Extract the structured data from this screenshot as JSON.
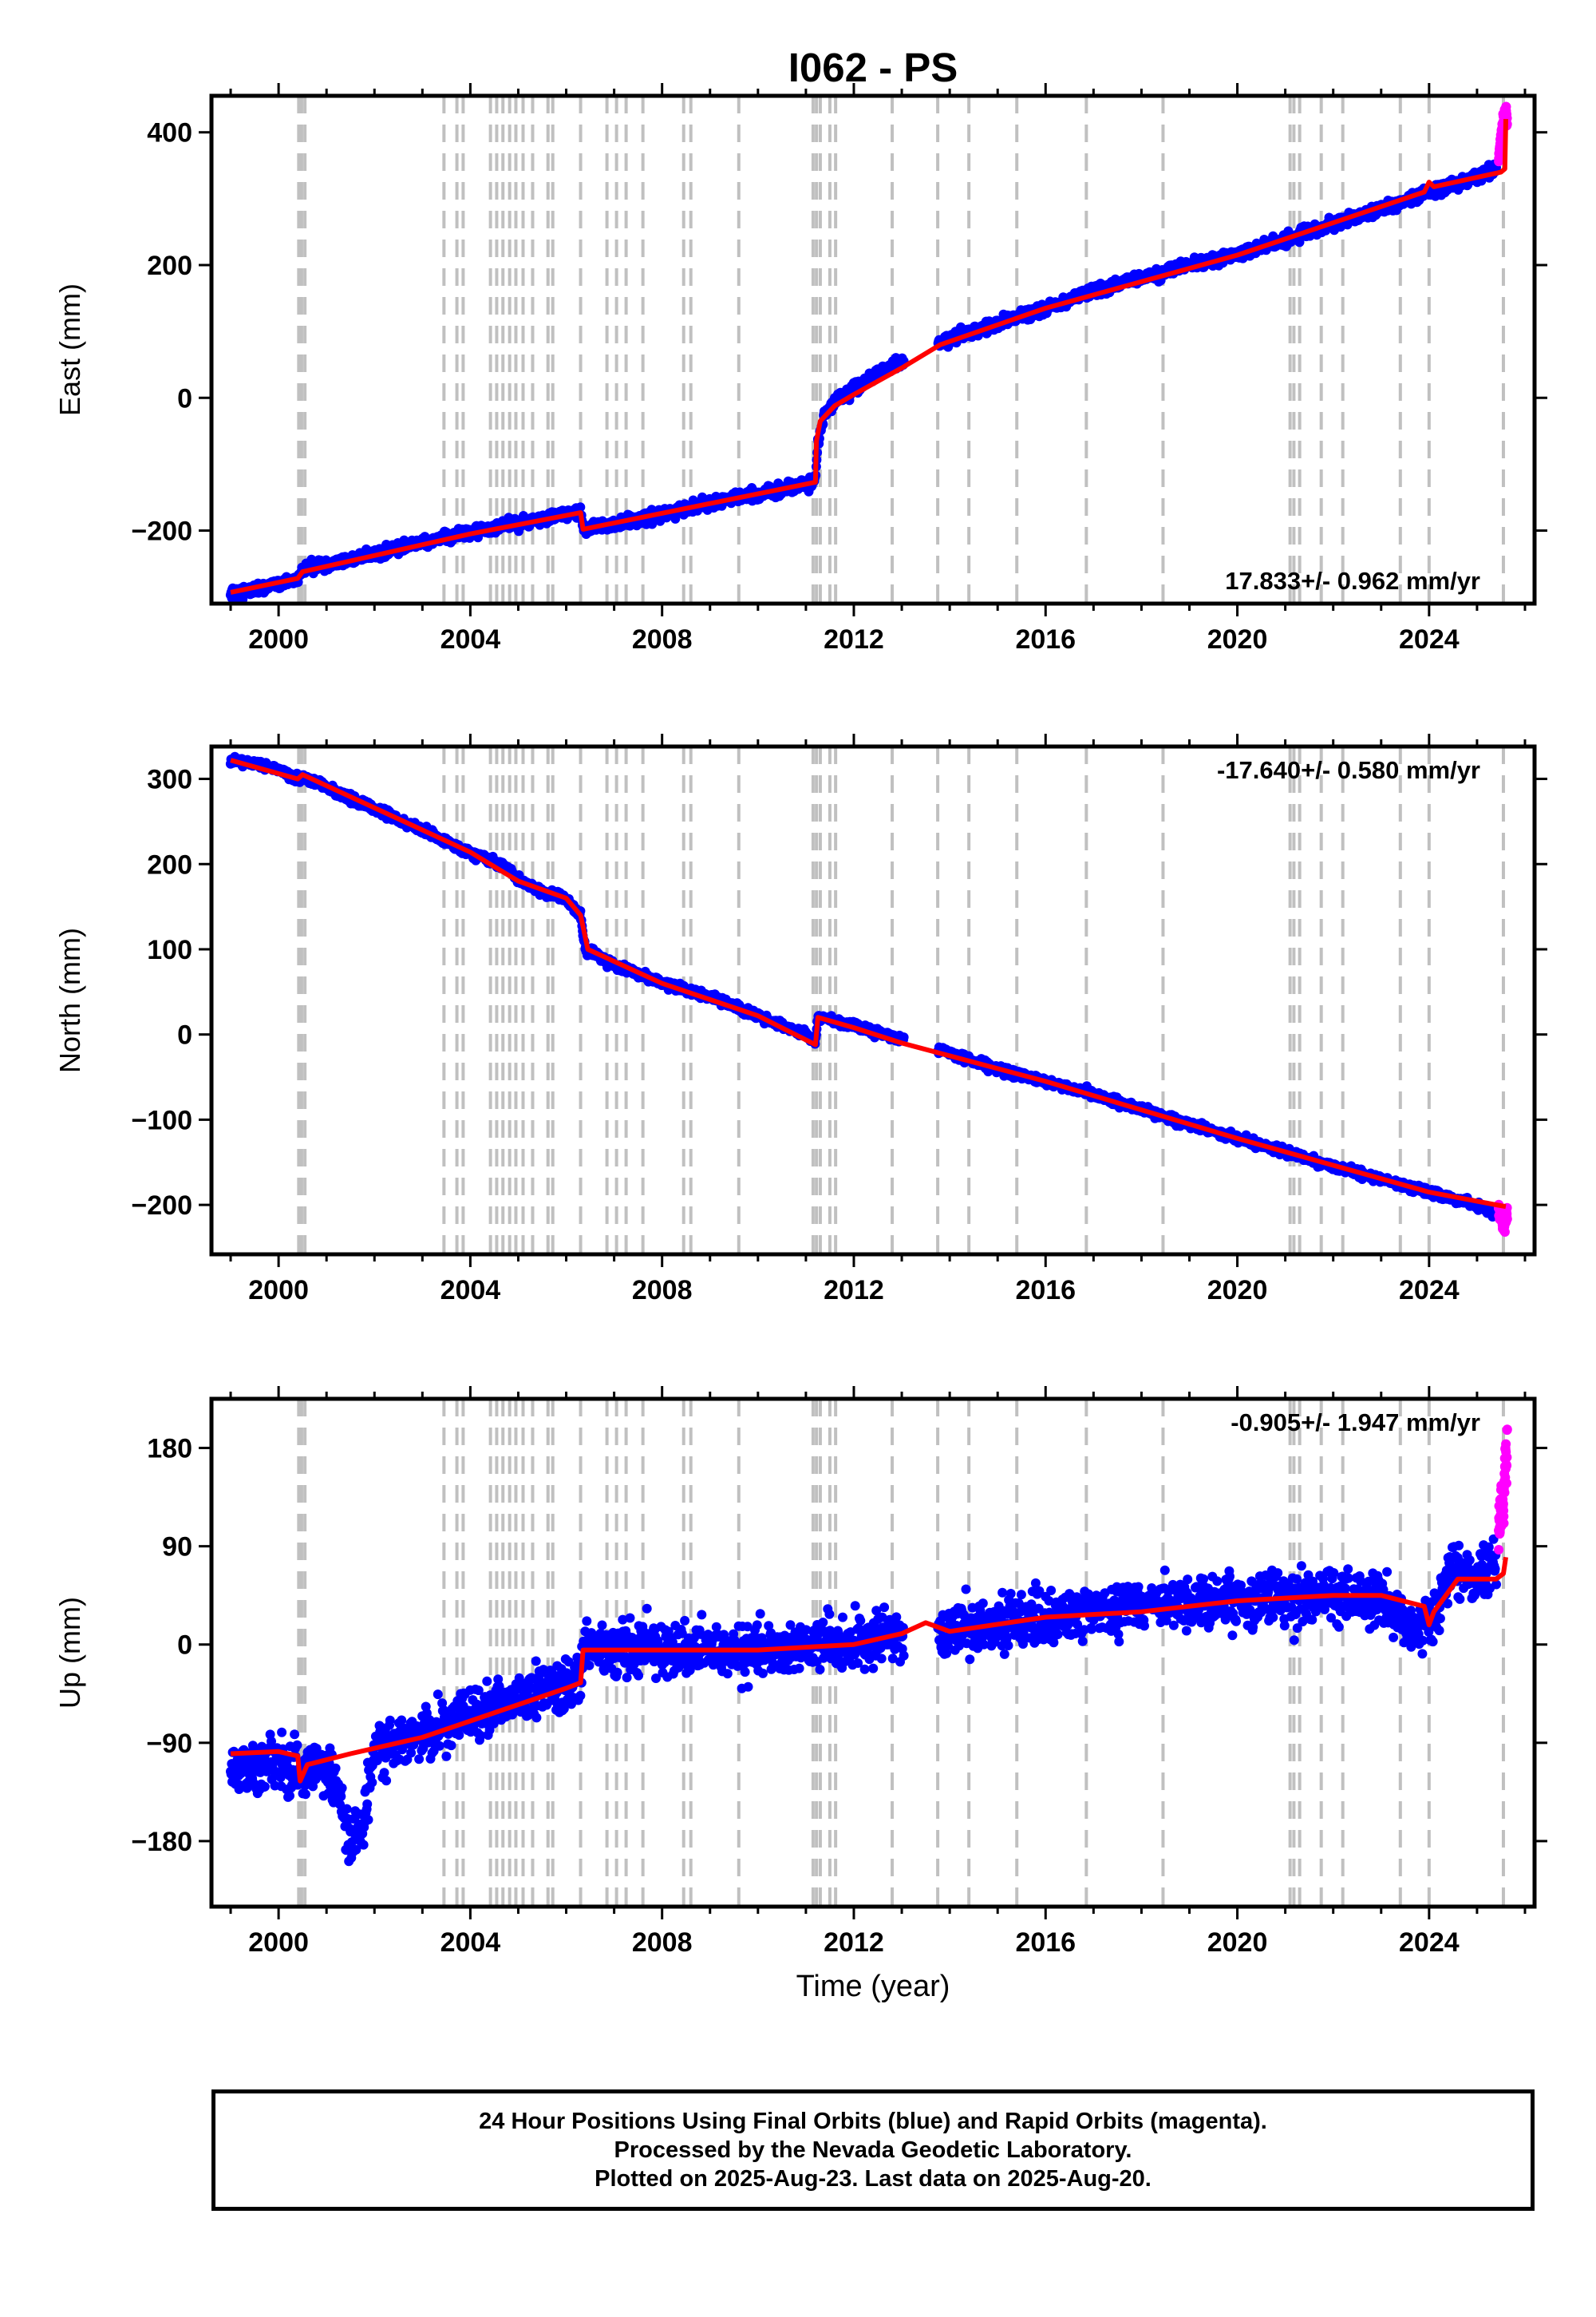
{
  "page_title": "I062 - PS",
  "colors": {
    "final_points": "#0000ff",
    "rapid_points": "#ff00ff",
    "model_line": "#ff0000",
    "event_lines": "#c0c0c0",
    "frame": "#000000"
  },
  "footer": {
    "line1": "24 Hour Positions Using Final Orbits (blue) and Rapid Orbits (magenta).",
    "line2": "Processed by the Nevada Geodetic Laboratory.",
    "line3": "Plotted on 2025-Aug-23. Last data on 2025-Aug-20."
  },
  "chart_data": [
    {
      "type": "scatter",
      "title": "I062 - PS",
      "xlabel": "",
      "ylabel": "East (mm)",
      "xlim": [
        1998.6,
        2026.2
      ],
      "ylim": [
        -310,
        455
      ],
      "xticks": [
        2000,
        2004,
        2008,
        2012,
        2016,
        2020,
        2024
      ],
      "xtick_labels": [
        "2000",
        "2004",
        "2008",
        "2012",
        "2016",
        "2020",
        "2024"
      ],
      "yticks": [
        -200,
        0,
        200,
        400
      ],
      "ytick_labels": [
        "−200",
        "0",
        "200",
        "400"
      ],
      "rate_annotation": "17.833+/- 0.962 mm/yr",
      "annotation_position": "bottom-right",
      "grid": false,
      "event_lines_x": [
        2000.42,
        2000.48,
        2000.55,
        2003.45,
        2003.72,
        2003.85,
        2004.42,
        2004.55,
        2004.68,
        2004.82,
        2004.95,
        2005.1,
        2005.3,
        2005.62,
        2005.72,
        2006.3,
        2006.85,
        2007.05,
        2007.25,
        2007.6,
        2008.45,
        2008.6,
        2009.6,
        2011.15,
        2011.22,
        2011.3,
        2011.5,
        2011.62,
        2012.8,
        2013.75,
        2014.4,
        2015.4,
        2016.85,
        2018.45,
        2021.1,
        2021.18,
        2021.3,
        2021.75,
        2022.2,
        2023.4,
        2024.0,
        2025.55
      ],
      "series": [
        {
          "name": "Final Orbits",
          "style": "points",
          "color": "#0000ff",
          "noise": 7,
          "x": [
            1999.0,
            1999.5,
            2000.0,
            2000.4,
            2000.5,
            2001.0,
            2002.0,
            2003.0,
            2004.0,
            2005.0,
            2006.0,
            2006.3,
            2006.35,
            2007.0,
            2008.0,
            2009.0,
            2010.0,
            2011.0,
            2011.2,
            2011.25,
            2011.4,
            2011.6,
            2012.0,
            2012.5,
            2013.0,
            2013.2,
            2013.8,
            2014.0,
            2015.0,
            2016.0,
            2017.0,
            2018.0,
            2019.0,
            2020.0,
            2021.0,
            2022.0,
            2023.0,
            2024.0,
            2024.5,
            2025.0,
            2025.4
          ],
          "y": [
            -295,
            -289,
            -280,
            -272,
            -258,
            -252,
            -235,
            -218,
            -203,
            -189,
            -175,
            -172,
            -198,
            -190,
            -175,
            -158,
            -145,
            -130,
            -125,
            -65,
            -25,
            -5,
            15,
            38,
            55,
            62,
            82,
            88,
            112,
            135,
            162,
            180,
            200,
            217,
            237,
            262,
            285,
            310,
            322,
            335,
            345
          ]
        },
        {
          "name": "Rapid Orbits",
          "style": "points",
          "color": "#ff00ff",
          "noise": 10,
          "x": [
            2025.45,
            2025.5,
            2025.55,
            2025.6,
            2025.63
          ],
          "y": [
            360,
            390,
            420,
            435,
            410
          ]
        },
        {
          "name": "Model",
          "style": "line",
          "color": "#ff0000",
          "x": [
            1999.0,
            2000.4,
            2000.5,
            2004.0,
            2006.3,
            2006.35,
            2011.2,
            2011.22,
            2011.3,
            2011.6,
            2012.0,
            2013.0,
            2013.8,
            2016.0,
            2020.0,
            2023.9,
            2024.0,
            2024.1,
            2025.5,
            2025.58,
            2025.6
          ],
          "y": [
            -293,
            -272,
            -262,
            -205,
            -173,
            -198,
            -127,
            -65,
            -35,
            -12,
            5,
            45,
            80,
            135,
            215,
            310,
            325,
            318,
            340,
            345,
            420
          ]
        }
      ]
    },
    {
      "type": "scatter",
      "title": "",
      "xlabel": "",
      "ylabel": "North (mm)",
      "xlim": [
        1998.6,
        2026.2
      ],
      "ylim": [
        -258,
        338
      ],
      "xticks": [
        2000,
        2004,
        2008,
        2012,
        2016,
        2020,
        2024
      ],
      "xtick_labels": [
        "2000",
        "2004",
        "2008",
        "2012",
        "2016",
        "2020",
        "2024"
      ],
      "yticks": [
        -200,
        -100,
        0,
        100,
        200,
        300
      ],
      "ytick_labels": [
        "−200",
        "−100",
        "0",
        "100",
        "200",
        "300"
      ],
      "rate_annotation": "-17.640+/- 0.580 mm/yr",
      "annotation_position": "top-right",
      "grid": false,
      "event_lines_x": [
        2000.42,
        2000.48,
        2000.55,
        2003.45,
        2003.72,
        2003.85,
        2004.42,
        2004.55,
        2004.68,
        2004.82,
        2004.95,
        2005.1,
        2005.3,
        2005.62,
        2005.72,
        2006.3,
        2006.85,
        2007.05,
        2007.25,
        2007.6,
        2008.45,
        2008.6,
        2009.6,
        2011.15,
        2011.22,
        2011.3,
        2011.5,
        2011.62,
        2012.8,
        2013.75,
        2014.4,
        2015.4,
        2016.85,
        2018.45,
        2021.1,
        2021.18,
        2021.3,
        2021.75,
        2022.2,
        2023.4,
        2024.0,
        2025.55
      ],
      "series": [
        {
          "name": "Final Orbits",
          "style": "points",
          "color": "#0000ff",
          "noise": 4,
          "x": [
            1999.0,
            1999.5,
            2000.0,
            2000.4,
            2000.5,
            2001.0,
            2002.0,
            2003.0,
            2004.0,
            2004.8,
            2005.0,
            2005.5,
            2006.0,
            2006.3,
            2006.4,
            2007.0,
            2008.0,
            2009.0,
            2010.0,
            2011.0,
            2011.2,
            2011.25,
            2012.0,
            2013.0,
            2014.0,
            2015.0,
            2016.0,
            2017.0,
            2018.0,
            2019.0,
            2020.0,
            2021.0,
            2022.0,
            2023.0,
            2024.0,
            2025.0,
            2025.4
          ],
          "y": [
            322,
            318,
            310,
            300,
            303,
            290,
            265,
            240,
            213,
            195,
            182,
            168,
            160,
            140,
            100,
            82,
            60,
            45,
            22,
            0,
            -10,
            20,
            10,
            -5,
            -22,
            -40,
            -55,
            -70,
            -88,
            -105,
            -122,
            -138,
            -155,
            -170,
            -185,
            -200,
            -212
          ]
        },
        {
          "name": "Rapid Orbits",
          "style": "points",
          "color": "#ff00ff",
          "noise": 8,
          "x": [
            2025.45,
            2025.5,
            2025.55,
            2025.6,
            2025.63
          ],
          "y": [
            -205,
            -215,
            -225,
            -220,
            -210
          ]
        },
        {
          "name": "Model",
          "style": "line",
          "color": "#ff0000",
          "x": [
            1999.0,
            2000.4,
            2000.5,
            2004.0,
            2005.0,
            2006.0,
            2006.3,
            2006.45,
            2008.0,
            2010.0,
            2011.2,
            2011.25,
            2012.0,
            2013.0,
            2016.0,
            2020.0,
            2024.0,
            2025.4,
            2025.6
          ],
          "y": [
            322,
            300,
            305,
            214,
            180,
            160,
            140,
            100,
            60,
            22,
            -12,
            20,
            8,
            -10,
            -55,
            -122,
            -185,
            -200,
            -202
          ]
        }
      ]
    },
    {
      "type": "scatter",
      "title": "",
      "xlabel": "Time (year)",
      "ylabel": "Up (mm)",
      "xlim": [
        1998.6,
        2026.2
      ],
      "ylim": [
        -240,
        225
      ],
      "xticks": [
        2000,
        2004,
        2008,
        2012,
        2016,
        2020,
        2024
      ],
      "xtick_labels": [
        "2000",
        "2004",
        "2008",
        "2012",
        "2016",
        "2020",
        "2024"
      ],
      "yticks": [
        -180,
        -90,
        0,
        90,
        180
      ],
      "ytick_labels": [
        "−180",
        "−90",
        "0",
        "90",
        "180"
      ],
      "rate_annotation": "-0.905+/- 1.947 mm/yr",
      "annotation_position": "top-right",
      "grid": false,
      "event_lines_x": [
        2000.42,
        2000.48,
        2000.55,
        2003.45,
        2003.72,
        2003.85,
        2004.42,
        2004.55,
        2004.68,
        2004.82,
        2004.95,
        2005.1,
        2005.3,
        2005.62,
        2005.72,
        2006.3,
        2006.85,
        2007.05,
        2007.25,
        2007.6,
        2008.45,
        2008.6,
        2009.6,
        2011.15,
        2011.22,
        2011.3,
        2011.5,
        2011.62,
        2012.8,
        2013.75,
        2014.4,
        2015.4,
        2016.85,
        2018.45,
        2021.1,
        2021.18,
        2021.3,
        2021.75,
        2022.2,
        2023.4,
        2024.0,
        2025.55
      ],
      "series": [
        {
          "name": "Final Orbits",
          "style": "points",
          "color": "#0000ff",
          "noise": 20,
          "x": [
            1999.0,
            1999.4,
            2000.0,
            2000.4,
            2000.5,
            2000.8,
            2001.2,
            2001.5,
            2001.8,
            2002.0,
            2003.0,
            2004.0,
            2005.0,
            2006.0,
            2006.3,
            2006.4,
            2007.0,
            2008.0,
            2009.0,
            2010.0,
            2011.0,
            2012.0,
            2013.0,
            2014.0,
            2015.0,
            2016.0,
            2017.0,
            2018.0,
            2019.0,
            2020.0,
            2021.0,
            2022.0,
            2023.0,
            2023.6,
            2024.0,
            2024.5,
            2025.0,
            2025.4
          ],
          "y": [
            -110,
            -115,
            -105,
            -115,
            -120,
            -105,
            -130,
            -185,
            -160,
            -100,
            -80,
            -65,
            -50,
            -35,
            -30,
            0,
            -5,
            -5,
            -5,
            -5,
            -5,
            0,
            10,
            10,
            20,
            25,
            30,
            35,
            40,
            40,
            45,
            45,
            40,
            15,
            15,
            70,
            60,
            80
          ]
        },
        {
          "name": "Rapid Orbits",
          "style": "points",
          "color": "#ff00ff",
          "noise": 18,
          "x": [
            2025.45,
            2025.5,
            2025.55,
            2025.58,
            2025.6,
            2025.62,
            2025.63
          ],
          "y": [
            100,
            130,
            120,
            160,
            175,
            150,
            215
          ]
        },
        {
          "name": "Model",
          "style": "line",
          "color": "#ff0000",
          "x": [
            1999.0,
            2000.0,
            2000.4,
            2000.45,
            2000.6,
            2001.5,
            2002.0,
            2003.0,
            2004.0,
            2005.0,
            2006.0,
            2006.3,
            2006.35,
            2008.0,
            2010.0,
            2012.0,
            2013.0,
            2013.5,
            2014.0,
            2016.0,
            2018.0,
            2020.0,
            2022.0,
            2023.0,
            2023.9,
            2024.0,
            2024.1,
            2024.6,
            2025.4,
            2025.55,
            2025.6
          ],
          "y": [
            -100,
            -98,
            -102,
            -125,
            -110,
            -100,
            -95,
            -85,
            -70,
            -55,
            -40,
            -35,
            -5,
            -5,
            -5,
            0,
            10,
            20,
            12,
            25,
            30,
            40,
            45,
            45,
            35,
            18,
            30,
            60,
            60,
            65,
            80
          ]
        }
      ]
    }
  ]
}
